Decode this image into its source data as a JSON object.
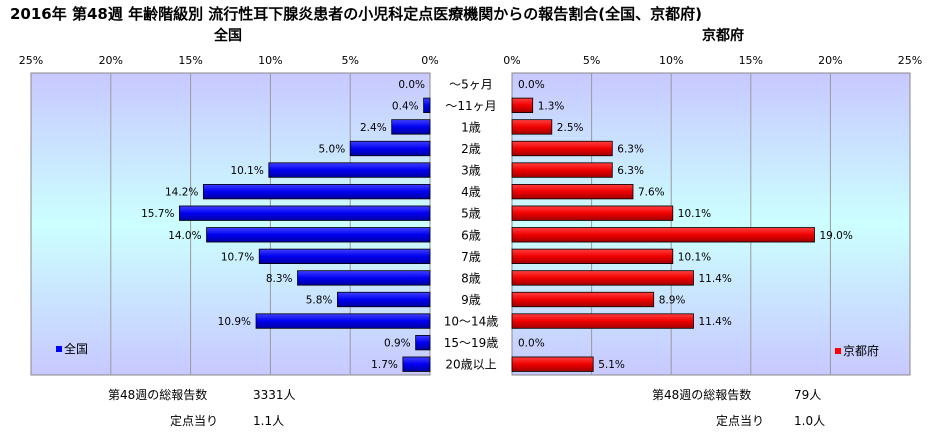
{
  "title": "2016年 第48週 年齢階級別 流行性耳下腺炎患者の小児科定点医療機関からの報告割合(全国、京都府)",
  "colors": {
    "national": "#0000ff",
    "kyoto": "#ff0000",
    "panel_top": "#c8c8ff",
    "panel_mid": "#ccffff"
  },
  "chart_data": {
    "type": "bar",
    "orientation": "horizontal",
    "layout": "population-pyramid",
    "categories": [
      "〜5ヶ月",
      "〜11ヶ月",
      "1歳",
      "2歳",
      "3歳",
      "4歳",
      "5歳",
      "6歳",
      "7歳",
      "8歳",
      "9歳",
      "10〜14歳",
      "15〜19歳",
      "20歳以上"
    ],
    "series": [
      {
        "name": "全国",
        "panel_title": "全国",
        "side": "left",
        "values": [
          0.0,
          0.4,
          2.4,
          5.0,
          10.1,
          14.2,
          15.7,
          14.0,
          10.7,
          8.3,
          5.8,
          10.9,
          0.9,
          1.7
        ],
        "value_labels": [
          "0.0%",
          "0.4%",
          "2.4%",
          "5.0%",
          "10.1%",
          "14.2%",
          "15.7%",
          "14.0%",
          "10.7%",
          "8.3%",
          "5.8%",
          "10.9%",
          "0.9%",
          "1.7%"
        ]
      },
      {
        "name": "京都府",
        "panel_title": "京都府",
        "side": "right",
        "values": [
          0.0,
          1.3,
          2.5,
          6.3,
          6.3,
          7.6,
          10.1,
          19.0,
          10.1,
          11.4,
          8.9,
          11.4,
          0.0,
          5.1
        ],
        "value_labels": [
          "0.0%",
          "1.3%",
          "2.5%",
          "6.3%",
          "6.3%",
          "7.6%",
          "10.1%",
          "19.0%",
          "10.1%",
          "11.4%",
          "8.9%",
          "11.4%",
          "0.0%",
          "5.1%"
        ]
      }
    ],
    "xlim": [
      0,
      25
    ],
    "left_ticks": [
      "25%",
      "20%",
      "15%",
      "10%",
      "5%",
      "0%"
    ],
    "right_ticks": [
      "0%",
      "5%",
      "10%",
      "15%",
      "20%",
      "25%"
    ],
    "grid": true,
    "legend_position": "bottom-left / bottom-right"
  },
  "footer": {
    "national": {
      "total_label": "第48週の総報告数",
      "total_value": "3331人",
      "per_label": "定点当り",
      "per_value": "1.1人"
    },
    "kyoto": {
      "total_label": "第48週の総報告数",
      "total_value": "79人",
      "per_label": "定点当り",
      "per_value": "1.0人"
    }
  }
}
